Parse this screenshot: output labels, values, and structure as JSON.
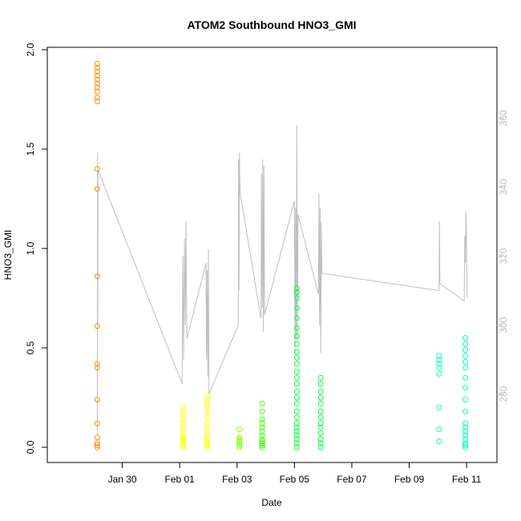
{
  "chart_data": {
    "type": "scatter",
    "title": "ATOM2 Southbound HNO3_GMI",
    "xlabel": "Date",
    "ylabel": "HNO3_GMI",
    "x_ticks": [
      "Jan 30",
      "Feb 01",
      "Feb 03",
      "Feb 05",
      "Feb 07",
      "Feb 09",
      "Feb 11"
    ],
    "xlim": [
      "2017-01-28",
      "2017-02-11 12:00"
    ],
    "ylim": [
      0,
      2.0
    ],
    "y_ticks": [
      "0.0",
      "0.5",
      "1.0",
      "1.5",
      "2.0"
    ],
    "right_axis": {
      "ylim": [
        266,
        374
      ],
      "ticks": [
        "280",
        "300",
        "320",
        "340",
        "360"
      ],
      "color": "#bebebe",
      "series": {
        "name": "",
        "points": [
          [
            "2017-01-29 03:00",
            268
          ],
          [
            "2017-01-29 03:10",
            290
          ],
          [
            "2017-01-29 03:20",
            350
          ],
          [
            "2017-01-29 03:30",
            300
          ],
          [
            "2017-01-29 03:40",
            345
          ],
          [
            "2017-02-01 02:00",
            283
          ],
          [
            "2017-02-01 02:40",
            320
          ],
          [
            "2017-02-01 03:20",
            290
          ],
          [
            "2017-02-01 04:00",
            325
          ],
          [
            "2017-02-01 04:40",
            300
          ],
          [
            "2017-02-01 05:20",
            330
          ],
          [
            "2017-02-01 06:00",
            296
          ],
          [
            "2017-02-01 22:00",
            318
          ],
          [
            "2017-02-01 22:30",
            290
          ],
          [
            "2017-02-01 23:00",
            316
          ],
          [
            "2017-02-01 23:30",
            285
          ],
          [
            "2017-02-02 00:00",
            322
          ],
          [
            "2017-02-02 00:30",
            280
          ],
          [
            "2017-02-03 01:00",
            300
          ],
          [
            "2017-02-03 01:20",
            348
          ],
          [
            "2017-02-03 01:40",
            310
          ],
          [
            "2017-02-03 02:00",
            350
          ],
          [
            "2017-02-03 02:20",
            342
          ],
          [
            "2017-02-03 02:40",
            338
          ],
          [
            "2017-02-03 20:00",
            302
          ],
          [
            "2017-02-03 20:30",
            344
          ],
          [
            "2017-02-03 21:00",
            305
          ],
          [
            "2017-02-03 21:30",
            348
          ],
          [
            "2017-02-03 22:00",
            298
          ],
          [
            "2017-02-03 22:30",
            346
          ],
          [
            "2017-02-03 23:00",
            303
          ],
          [
            "2017-02-05 00:00",
            336
          ],
          [
            "2017-02-05 00:30",
            292
          ],
          [
            "2017-02-05 01:00",
            334
          ],
          [
            "2017-02-05 01:30",
            296
          ],
          [
            "2017-02-05 02:00",
            358
          ],
          [
            "2017-02-05 02:30",
            295
          ],
          [
            "2017-02-05 03:00",
            332
          ],
          [
            "2017-02-05 20:00",
            309
          ],
          [
            "2017-02-05 20:30",
            338
          ],
          [
            "2017-02-05 21:00",
            300
          ],
          [
            "2017-02-05 21:30",
            334
          ],
          [
            "2017-02-05 22:00",
            292
          ],
          [
            "2017-02-05 22:30",
            330
          ],
          [
            "2017-02-05 23:00",
            315
          ],
          [
            "2017-02-10 01:00",
            310
          ],
          [
            "2017-02-10 01:20",
            330
          ],
          [
            "2017-02-10 01:40",
            312
          ],
          [
            "2017-02-10 22:00",
            307
          ],
          [
            "2017-02-10 22:30",
            326
          ],
          [
            "2017-02-10 23:00",
            318
          ],
          [
            "2017-02-10 23:30",
            333
          ],
          [
            "2017-02-11 00:00",
            322
          ],
          [
            "2017-02-11 00:30",
            308
          ]
        ]
      }
    },
    "series": [
      {
        "color": "#ff8c00",
        "points": [
          [
            "2017-01-29 03:00",
            1.93
          ],
          [
            "2017-01-29 03:00",
            1.91
          ],
          [
            "2017-01-29 03:00",
            1.89
          ],
          [
            "2017-01-29 03:00",
            1.87
          ],
          [
            "2017-01-29 03:00",
            1.85
          ],
          [
            "2017-01-29 03:00",
            1.83
          ],
          [
            "2017-01-29 03:00",
            1.81
          ],
          [
            "2017-01-29 03:00",
            1.79
          ],
          [
            "2017-01-29 03:00",
            1.76
          ],
          [
            "2017-01-29 03:00",
            1.74
          ],
          [
            "2017-01-29 03:00",
            1.4
          ],
          [
            "2017-01-29 03:00",
            1.3
          ],
          [
            "2017-01-29 03:00",
            0.86
          ],
          [
            "2017-01-29 03:00",
            0.61
          ],
          [
            "2017-01-29 03:00",
            0.42
          ],
          [
            "2017-01-29 03:00",
            0.4
          ],
          [
            "2017-01-29 03:00",
            0.24
          ],
          [
            "2017-01-29 03:00",
            0.12
          ],
          [
            "2017-01-29 03:00",
            0.05
          ],
          [
            "2017-01-29 03:00",
            0.02
          ],
          [
            "2017-01-29 03:00",
            0.01
          ],
          [
            "2017-01-29 03:00",
            0.0
          ]
        ]
      },
      {
        "color": "#ffff00",
        "points": [
          [
            "2017-02-01 03:00",
            0.2
          ],
          [
            "2017-02-01 03:00",
            0.18
          ],
          [
            "2017-02-01 03:00",
            0.16
          ],
          [
            "2017-02-01 03:00",
            0.14
          ],
          [
            "2017-02-01 03:00",
            0.12
          ],
          [
            "2017-02-01 03:00",
            0.1
          ],
          [
            "2017-02-01 03:00",
            0.08
          ],
          [
            "2017-02-01 03:00",
            0.06
          ],
          [
            "2017-02-01 03:00",
            0.05
          ],
          [
            "2017-02-01 03:00",
            0.04
          ],
          [
            "2017-02-01 03:00",
            0.03
          ],
          [
            "2017-02-01 03:00",
            0.02
          ],
          [
            "2017-02-01 03:00",
            0.01
          ],
          [
            "2017-02-01 03:00",
            0.0
          ],
          [
            "2017-02-01 23:00",
            0.26
          ],
          [
            "2017-02-01 23:00",
            0.24
          ],
          [
            "2017-02-01 23:00",
            0.22
          ],
          [
            "2017-02-01 23:00",
            0.2
          ],
          [
            "2017-02-01 23:00",
            0.18
          ],
          [
            "2017-02-01 23:00",
            0.15
          ],
          [
            "2017-02-01 23:00",
            0.12
          ],
          [
            "2017-02-01 23:00",
            0.1
          ],
          [
            "2017-02-01 23:00",
            0.08
          ],
          [
            "2017-02-01 23:00",
            0.06
          ],
          [
            "2017-02-01 23:00",
            0.04
          ],
          [
            "2017-02-01 23:00",
            0.03
          ],
          [
            "2017-02-01 23:00",
            0.02
          ],
          [
            "2017-02-01 23:00",
            0.01
          ],
          [
            "2017-02-01 23:00",
            0.0
          ]
        ]
      },
      {
        "color": "#80ff00",
        "points": [
          [
            "2017-02-03 02:00",
            0.09
          ],
          [
            "2017-02-03 02:00",
            0.05
          ],
          [
            "2017-02-03 02:00",
            0.04
          ],
          [
            "2017-02-03 02:00",
            0.03
          ],
          [
            "2017-02-03 02:00",
            0.02
          ],
          [
            "2017-02-03 02:00",
            0.01
          ],
          [
            "2017-02-03 02:00",
            0.0
          ]
        ]
      },
      {
        "color": "#40ff00",
        "points": [
          [
            "2017-02-03 21:00",
            0.22
          ],
          [
            "2017-02-03 21:00",
            0.18
          ],
          [
            "2017-02-03 21:00",
            0.14
          ],
          [
            "2017-02-03 21:00",
            0.12
          ],
          [
            "2017-02-03 21:00",
            0.1
          ],
          [
            "2017-02-03 21:00",
            0.08
          ],
          [
            "2017-02-03 21:00",
            0.06
          ],
          [
            "2017-02-03 21:00",
            0.04
          ],
          [
            "2017-02-03 21:00",
            0.03
          ],
          [
            "2017-02-03 21:00",
            0.02
          ],
          [
            "2017-02-03 21:00",
            0.01
          ],
          [
            "2017-02-03 21:00",
            0.0
          ]
        ]
      },
      {
        "color": "#00ff40",
        "points": [
          [
            "2017-02-05 02:00",
            0.8
          ],
          [
            "2017-02-05 02:00",
            0.78
          ],
          [
            "2017-02-05 02:00",
            0.75
          ],
          [
            "2017-02-05 02:00",
            0.7
          ],
          [
            "2017-02-05 02:00",
            0.65
          ],
          [
            "2017-02-05 02:00",
            0.6
          ],
          [
            "2017-02-05 02:00",
            0.56
          ],
          [
            "2017-02-05 02:00",
            0.52
          ],
          [
            "2017-02-05 02:00",
            0.48
          ],
          [
            "2017-02-05 02:00",
            0.45
          ],
          [
            "2017-02-05 02:00",
            0.42
          ],
          [
            "2017-02-05 02:00",
            0.38
          ],
          [
            "2017-02-05 02:00",
            0.35
          ],
          [
            "2017-02-05 02:00",
            0.32
          ],
          [
            "2017-02-05 02:00",
            0.28
          ],
          [
            "2017-02-05 02:00",
            0.25
          ],
          [
            "2017-02-05 02:00",
            0.22
          ],
          [
            "2017-02-05 02:00",
            0.18
          ],
          [
            "2017-02-05 02:00",
            0.15
          ],
          [
            "2017-02-05 02:00",
            0.12
          ],
          [
            "2017-02-05 02:00",
            0.1
          ],
          [
            "2017-02-05 02:00",
            0.08
          ],
          [
            "2017-02-05 02:00",
            0.06
          ],
          [
            "2017-02-05 02:00",
            0.04
          ],
          [
            "2017-02-05 02:00",
            0.02
          ],
          [
            "2017-02-05 02:00",
            0.0
          ],
          [
            "2017-02-05 22:00",
            0.35
          ],
          [
            "2017-02-05 22:00",
            0.32
          ],
          [
            "2017-02-05 22:00",
            0.28
          ],
          [
            "2017-02-05 22:00",
            0.25
          ],
          [
            "2017-02-05 22:00",
            0.22
          ],
          [
            "2017-02-05 22:00",
            0.18
          ],
          [
            "2017-02-05 22:00",
            0.15
          ],
          [
            "2017-02-05 22:00",
            0.12
          ],
          [
            "2017-02-05 22:00",
            0.1
          ],
          [
            "2017-02-05 22:00",
            0.07
          ],
          [
            "2017-02-05 22:00",
            0.04
          ],
          [
            "2017-02-05 22:00",
            0.02
          ],
          [
            "2017-02-05 22:00",
            0.0
          ]
        ]
      },
      {
        "color": "#00ffbf",
        "points": [
          [
            "2017-02-10 01:00",
            0.46
          ],
          [
            "2017-02-10 01:00",
            0.44
          ],
          [
            "2017-02-10 01:00",
            0.42
          ],
          [
            "2017-02-10 01:00",
            0.4
          ],
          [
            "2017-02-10 01:00",
            0.37
          ],
          [
            "2017-02-10 01:00",
            0.2
          ],
          [
            "2017-02-10 01:00",
            0.09
          ],
          [
            "2017-02-10 01:00",
            0.03
          ],
          [
            "2017-02-10 23:00",
            0.55
          ],
          [
            "2017-02-10 23:00",
            0.52
          ],
          [
            "2017-02-10 23:00",
            0.49
          ],
          [
            "2017-02-10 23:00",
            0.46
          ],
          [
            "2017-02-10 23:00",
            0.43
          ],
          [
            "2017-02-10 23:00",
            0.4
          ],
          [
            "2017-02-10 23:00",
            0.35
          ],
          [
            "2017-02-10 23:00",
            0.3
          ],
          [
            "2017-02-10 23:00",
            0.24
          ],
          [
            "2017-02-10 23:00",
            0.18
          ],
          [
            "2017-02-10 23:00",
            0.12
          ],
          [
            "2017-02-10 23:00",
            0.1
          ],
          [
            "2017-02-10 23:00",
            0.08
          ],
          [
            "2017-02-10 23:00",
            0.06
          ],
          [
            "2017-02-10 23:00",
            0.04
          ],
          [
            "2017-02-10 23:00",
            0.02
          ],
          [
            "2017-02-10 23:00",
            0.01
          ],
          [
            "2017-02-10 23:00",
            0.0
          ]
        ]
      }
    ],
    "grid": false,
    "legend": "none"
  }
}
